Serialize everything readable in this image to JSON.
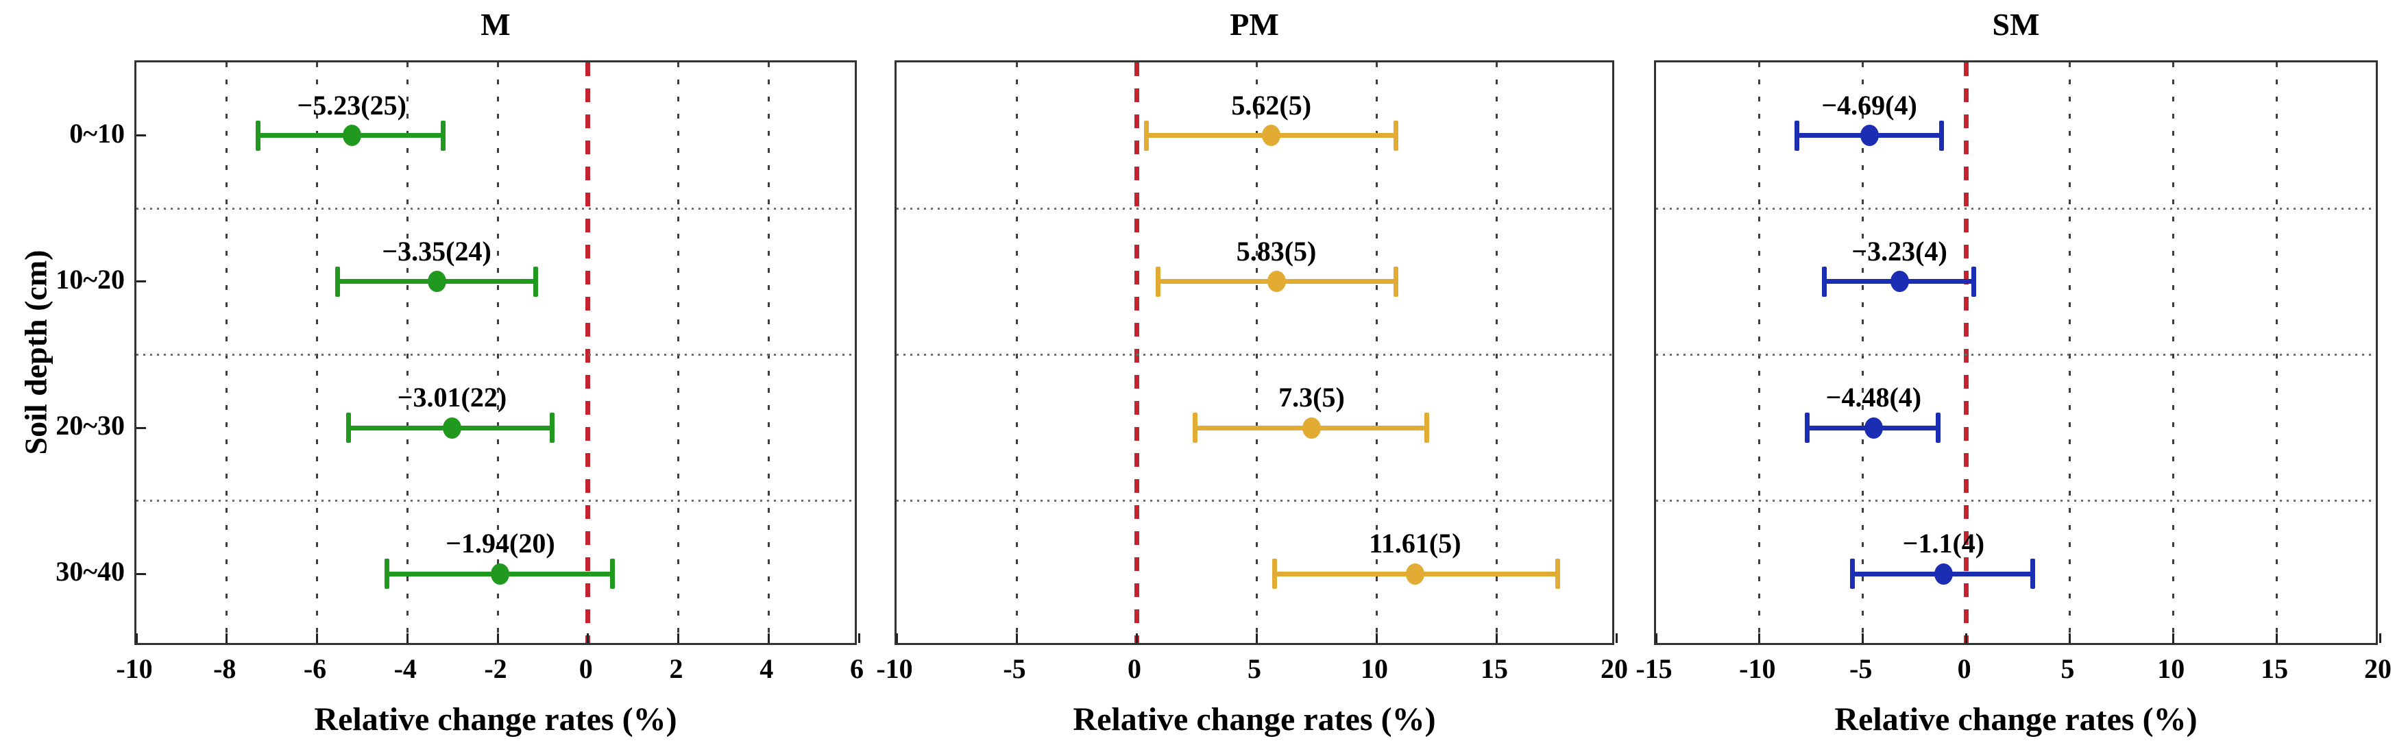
{
  "figure": {
    "y_axis_label": "Soil depth (cm)",
    "x_axis_label": "Relative change rates (%)",
    "depth_categories": [
      "0~10",
      "10~20",
      "20~30",
      "30~40"
    ],
    "colors": {
      "zero_reference_line": "#c42430",
      "gridline": "#3f3f3f",
      "row_separator": "#6f6f6f",
      "plot_border": "#333333",
      "text": "#000000"
    }
  },
  "chart_data": [
    {
      "type": "scatter",
      "subtype": "horizontal-error-bar",
      "title": "M",
      "color": "#21991f",
      "xlabel": "Relative change rates (%)",
      "ylabel": "Soil depth (cm)",
      "xlim": [
        -10,
        6
      ],
      "xticks": [
        -10,
        -8,
        -6,
        -4,
        -2,
        0,
        2,
        4,
        6
      ],
      "xtick_labels": [
        "-10",
        "-8",
        "-6",
        "-4",
        "-2",
        "0",
        "2",
        "4",
        "6"
      ],
      "categories": [
        "0~10",
        "10~20",
        "20~30",
        "30~40"
      ],
      "grid": true,
      "legend_position": "none",
      "zero_line_x": 0,
      "points": [
        {
          "category": "0~10",
          "value": -5.23,
          "n": 25,
          "err_low": -7.3,
          "err_high": -3.2,
          "label": "−5.23(25)"
        },
        {
          "category": "10~20",
          "value": -3.35,
          "n": 24,
          "err_low": -5.55,
          "err_high": -1.15,
          "label": "−3.35(24)"
        },
        {
          "category": "20~30",
          "value": -3.01,
          "n": 22,
          "err_low": -5.3,
          "err_high": -0.8,
          "label": "−3.01(22)"
        },
        {
          "category": "30~40",
          "value": -1.94,
          "n": 20,
          "err_low": -4.45,
          "err_high": 0.55,
          "label": "−1.94(20)"
        }
      ]
    },
    {
      "type": "scatter",
      "subtype": "horizontal-error-bar",
      "title": "PM",
      "color": "#e2ab33",
      "xlabel": "Relative change rates (%)",
      "ylabel": "Soil depth (cm)",
      "xlim": [
        -10,
        20
      ],
      "xticks": [
        -10,
        -5,
        0,
        5,
        10,
        15,
        20
      ],
      "xtick_labels": [
        "-10",
        "-5",
        "0",
        "5",
        "10",
        "15",
        "20"
      ],
      "categories": [
        "0~10",
        "10~20",
        "20~30",
        "30~40"
      ],
      "grid": true,
      "legend_position": "none",
      "zero_line_x": 0,
      "points": [
        {
          "category": "0~10",
          "value": 5.62,
          "n": 5,
          "err_low": 0.4,
          "err_high": 10.8,
          "label": "5.62(5)"
        },
        {
          "category": "10~20",
          "value": 5.83,
          "n": 5,
          "err_low": 0.9,
          "err_high": 10.8,
          "label": "5.83(5)"
        },
        {
          "category": "20~30",
          "value": 7.3,
          "n": 5,
          "err_low": 2.45,
          "err_high": 12.1,
          "label": "7.3(5)"
        },
        {
          "category": "30~40",
          "value": 11.61,
          "n": 5,
          "err_low": 5.75,
          "err_high": 17.55,
          "label": "11.61(5)"
        }
      ]
    },
    {
      "type": "scatter",
      "subtype": "horizontal-error-bar",
      "title": "SM",
      "color": "#1b2db2",
      "xlabel": "Relative change rates (%)",
      "ylabel": "Soil depth (cm)",
      "xlim": [
        -15,
        20
      ],
      "xticks": [
        -15,
        -10,
        -5,
        0,
        5,
        10,
        15,
        20
      ],
      "xtick_labels": [
        "-15",
        "-10",
        "-5",
        "0",
        "5",
        "10",
        "15",
        "20"
      ],
      "categories": [
        "0~10",
        "10~20",
        "20~30",
        "30~40"
      ],
      "grid": true,
      "legend_position": "none",
      "zero_line_x": 0,
      "points": [
        {
          "category": "0~10",
          "value": -4.69,
          "n": 4,
          "err_low": -8.2,
          "err_high": -1.2,
          "label": "−4.69(4)"
        },
        {
          "category": "10~20",
          "value": -3.23,
          "n": 4,
          "err_low": -6.85,
          "err_high": 0.35,
          "label": "−3.23(4)"
        },
        {
          "category": "20~30",
          "value": -4.48,
          "n": 4,
          "err_low": -7.7,
          "err_high": -1.35,
          "label": "−4.48(4)"
        },
        {
          "category": "30~40",
          "value": -1.1,
          "n": 4,
          "err_low": -5.5,
          "err_high": 3.2,
          "label": "−1.1(4)"
        }
      ]
    }
  ]
}
